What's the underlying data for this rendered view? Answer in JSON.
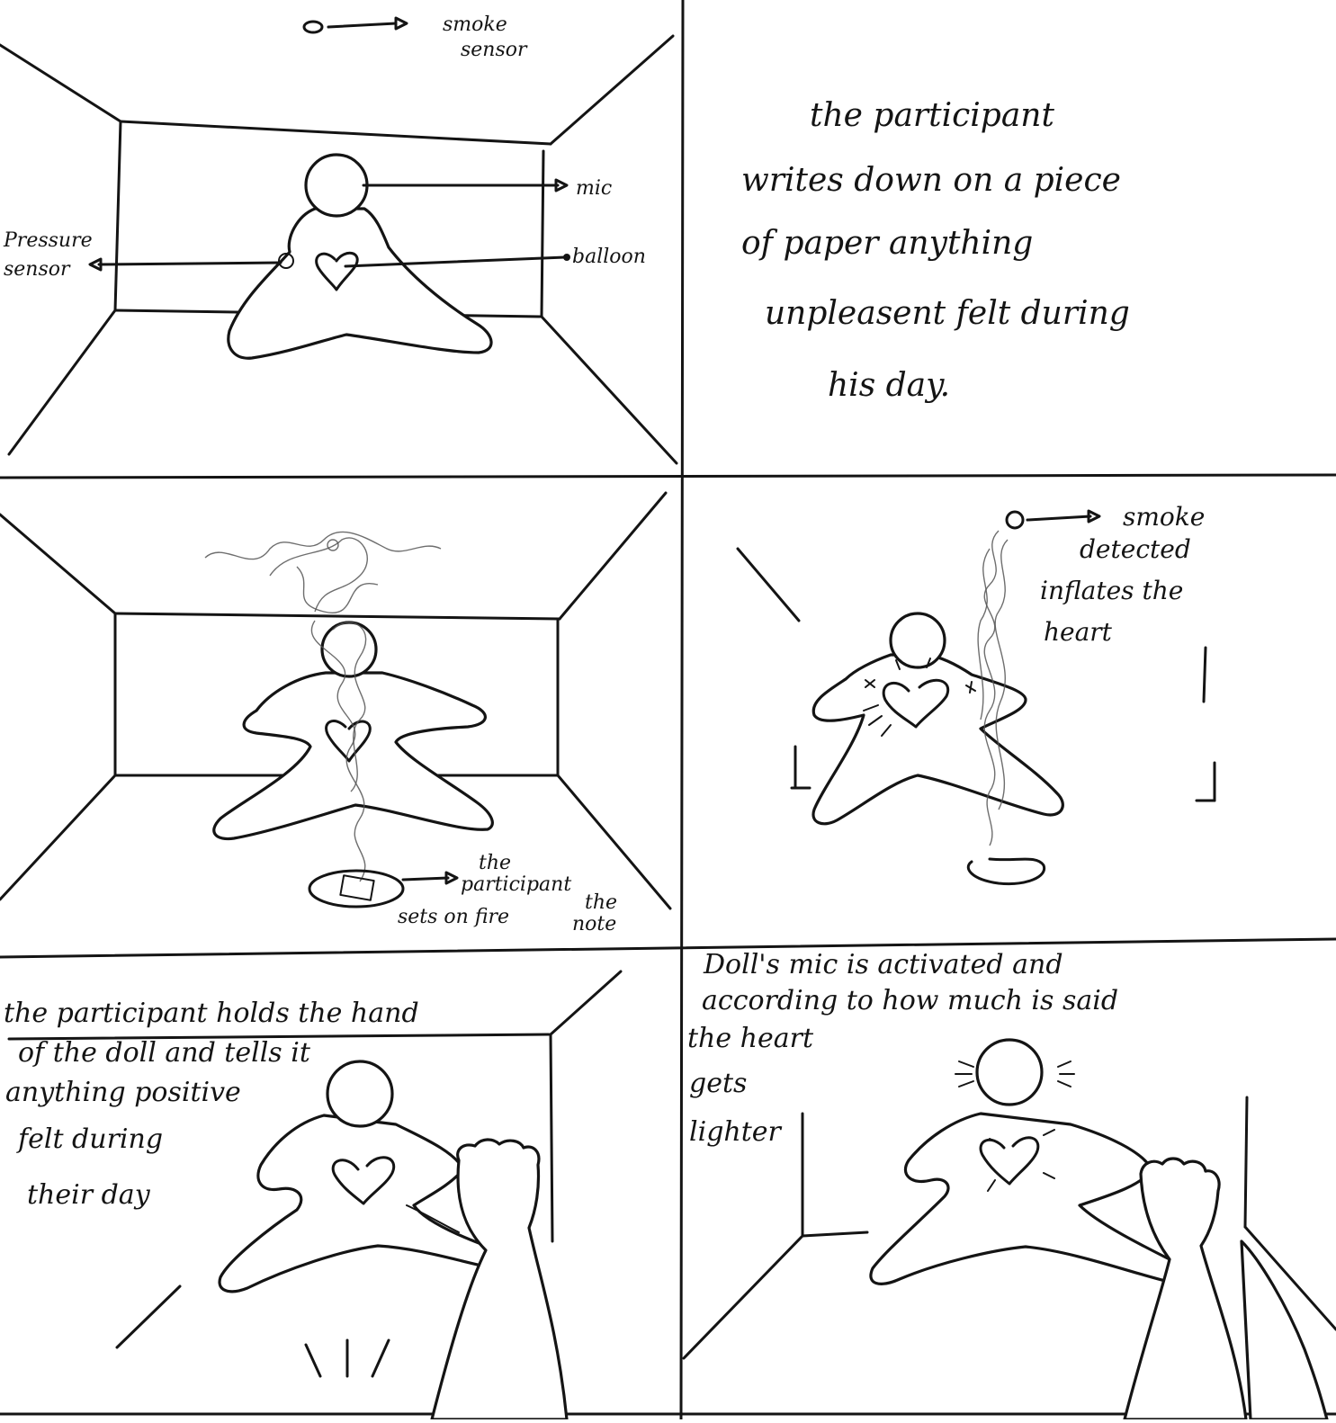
{
  "panels": [
    {
      "id": "p1",
      "labels": {
        "smoke_sensor": [
          "smoke",
          "sensor"
        ],
        "mic": "mic",
        "balloon": "balloon",
        "pressure_sensor": [
          "Pressure",
          "sensor"
        ]
      }
    },
    {
      "id": "p2",
      "caption": [
        "the participant",
        "writes down on a piece",
        "of paper anything",
        "unpleasent felt during",
        "his day."
      ]
    },
    {
      "id": "p3",
      "label": [
        "the",
        "participant",
        "sets on fire",
        "the",
        "note"
      ]
    },
    {
      "id": "p4",
      "label": [
        "smoke",
        "detected",
        "inflates the",
        "heart"
      ]
    },
    {
      "id": "p5",
      "caption": [
        "the participant holds the hand",
        "of the doll and tells it",
        "anything positive",
        "felt during",
        "their day"
      ]
    },
    {
      "id": "p6",
      "caption": [
        "Doll's mic is activated and",
        "according to how much is said",
        "the heart",
        "gets",
        "lighter"
      ]
    }
  ]
}
